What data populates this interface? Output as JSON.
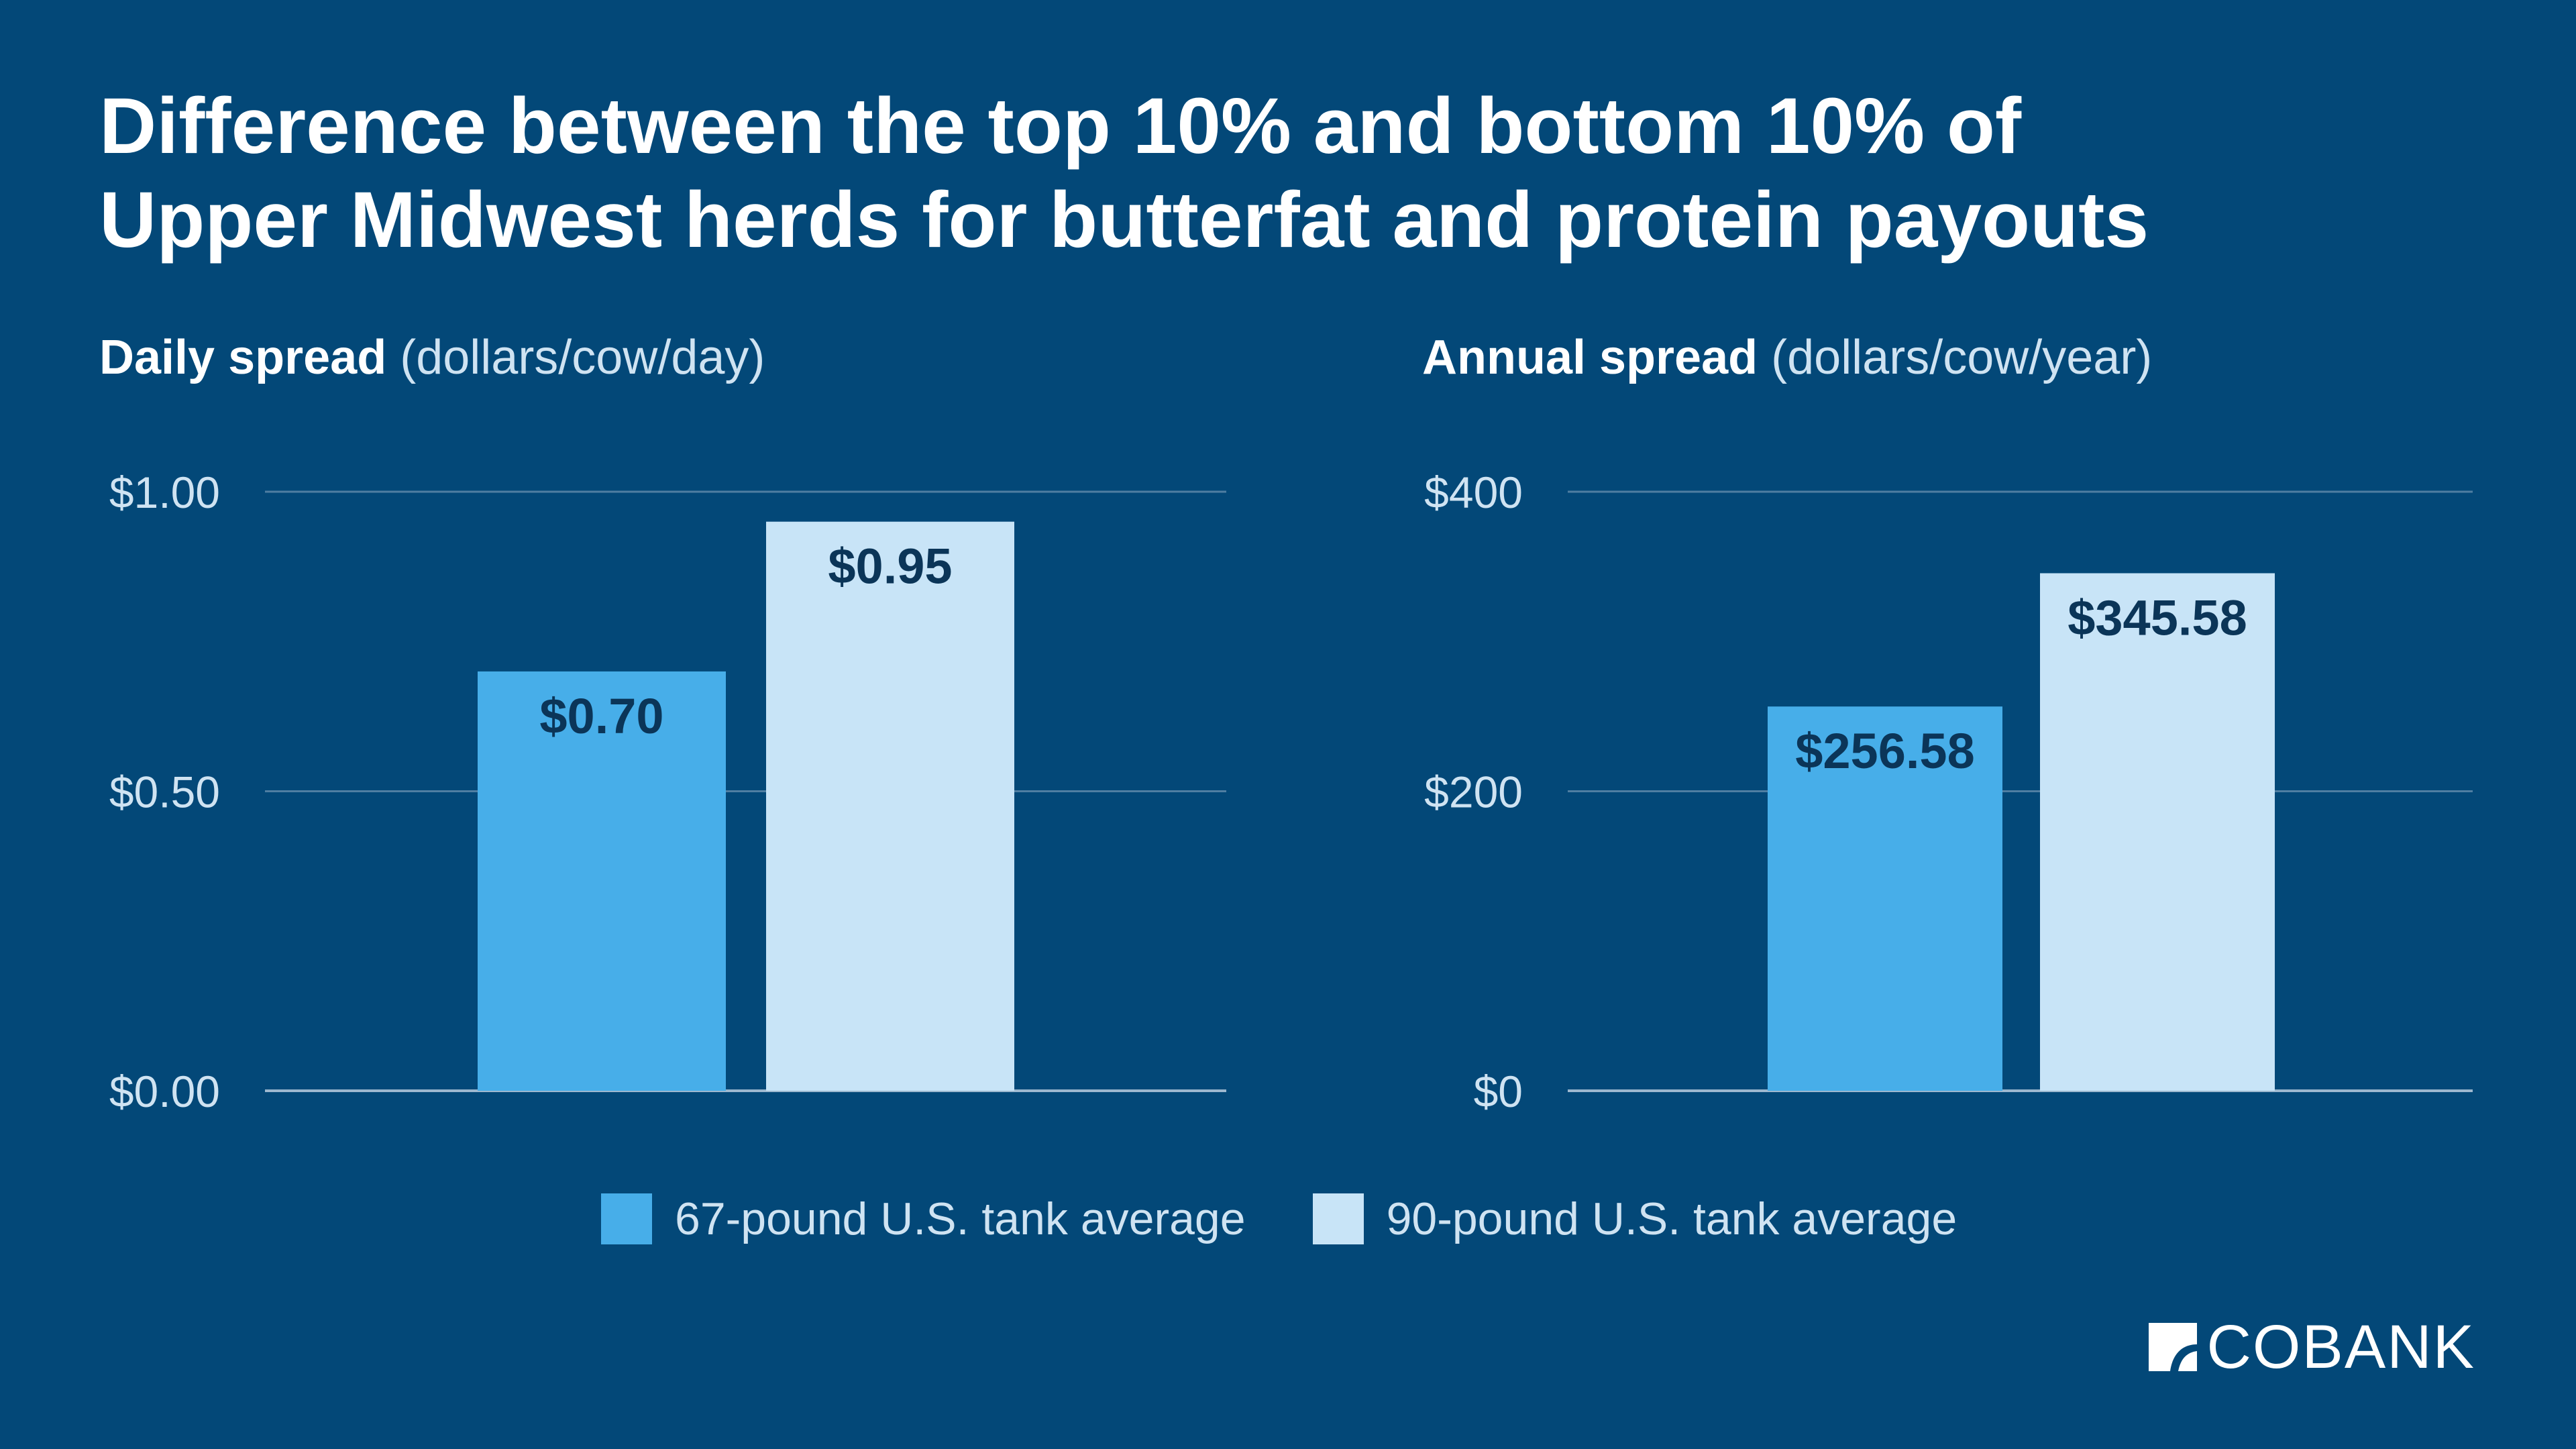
{
  "title": {
    "line1": "Difference between the top 10% and bottom 10% of",
    "line2": "Upper Midwest herds for butterfat and protein payouts"
  },
  "colors": {
    "background": "#034878",
    "series_67": "#47AEE9",
    "series_90": "#C8E4F7",
    "gridline": "#4F7EA2",
    "axis": "#9DB8CF",
    "label_text": "#0B3558"
  },
  "legend": {
    "items": [
      {
        "label": "67-pound U.S. tank average",
        "color": "#47AEE9"
      },
      {
        "label": "90-pound U.S. tank average",
        "color": "#C8E4F7"
      }
    ],
    "placement": "bottom-center"
  },
  "logo": {
    "text": "COBANK"
  },
  "chart_data": [
    {
      "type": "bar",
      "heading": "Daily spread",
      "unit": "(dollars/cow/day)",
      "series": [
        {
          "name": "67-pound U.S. tank average",
          "values": [
            0.7
          ],
          "labels": [
            "$0.70"
          ]
        },
        {
          "name": "90-pound U.S. tank average",
          "values": [
            0.95
          ],
          "labels": [
            "$0.95"
          ]
        }
      ],
      "ylim": [
        0,
        1.0
      ],
      "ticks": [
        {
          "value": 0,
          "label": "$0.00"
        },
        {
          "value": 0.5,
          "label": "$0.50"
        },
        {
          "value": 1.0,
          "label": "$1.00"
        }
      ],
      "grid": true
    },
    {
      "type": "bar",
      "heading": "Annual spread",
      "unit": "(dollars/cow/year)",
      "series": [
        {
          "name": "67-pound U.S. tank average",
          "values": [
            256.58
          ],
          "labels": [
            "$256.58"
          ]
        },
        {
          "name": "90-pound U.S. tank average",
          "values": [
            345.58
          ],
          "labels": [
            "$345.58"
          ]
        }
      ],
      "ylim": [
        0,
        400
      ],
      "ticks": [
        {
          "value": 0,
          "label": "$0"
        },
        {
          "value": 200,
          "label": "$200"
        },
        {
          "value": 400,
          "label": "$400"
        }
      ],
      "grid": true
    }
  ]
}
